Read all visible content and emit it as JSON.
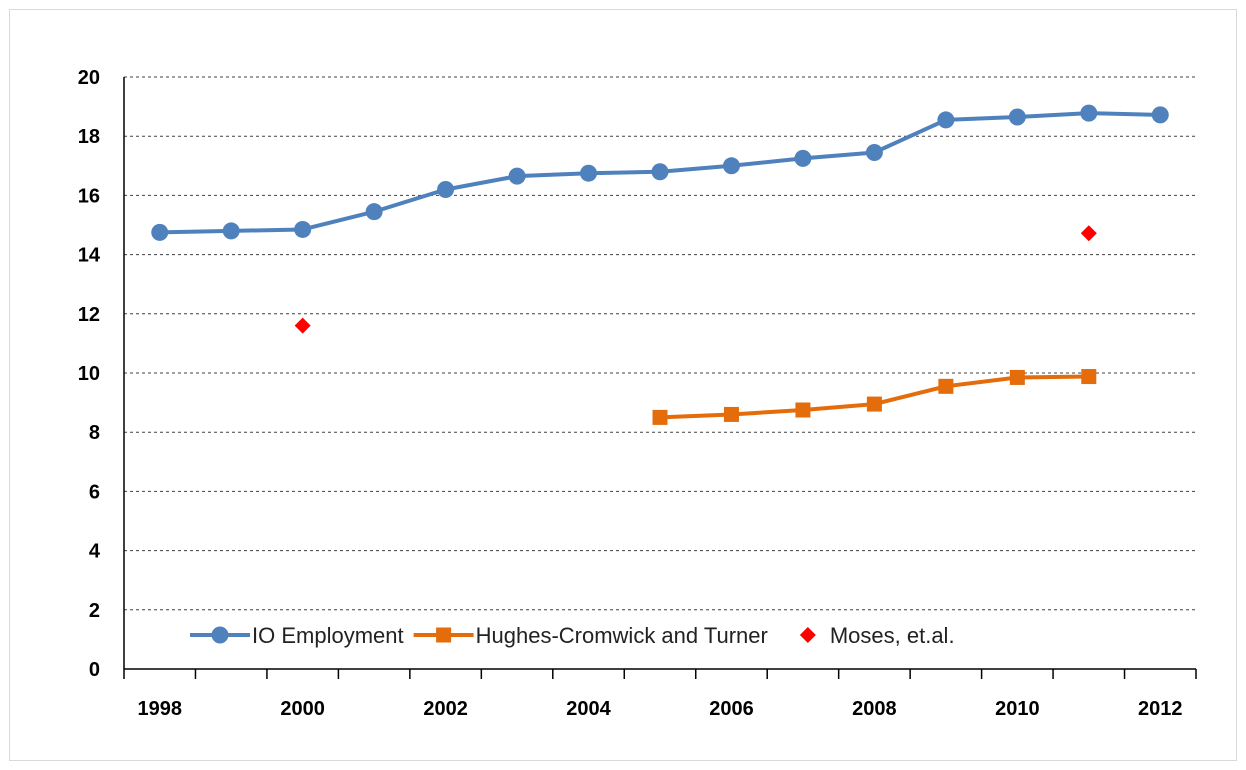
{
  "chart_data": {
    "type": "line",
    "title": "",
    "xlabel": "",
    "ylabel": "",
    "ylim": [
      0,
      20
    ],
    "yticks": [
      0,
      2,
      4,
      6,
      8,
      10,
      12,
      14,
      16,
      18,
      20
    ],
    "xlim": [
      1997.5,
      2012.5
    ],
    "xticks": [
      1998,
      2000,
      2002,
      2004,
      2006,
      2008,
      2010,
      2012
    ],
    "grid": "horizontal dashed",
    "legend_position": "bottom",
    "series": [
      {
        "name": "IO Employment",
        "color": "#4f81bd",
        "marker": "circle",
        "x": [
          1998,
          1999,
          2000,
          2001,
          2002,
          2003,
          2004,
          2005,
          2006,
          2007,
          2008,
          2009,
          2010,
          2011,
          2012
        ],
        "values": [
          14.75,
          14.8,
          14.85,
          15.45,
          16.2,
          16.65,
          16.75,
          16.8,
          17.0,
          17.25,
          17.45,
          18.55,
          18.65,
          18.78,
          18.72
        ]
      },
      {
        "name": "Hughes-Cromwick and Turner",
        "color": "#e46c0a",
        "marker": "square",
        "x": [
          2005,
          2006,
          2007,
          2008,
          2009,
          2010,
          2011
        ],
        "values": [
          8.5,
          8.6,
          8.75,
          8.95,
          9.55,
          9.85,
          9.88
        ]
      },
      {
        "name": "Moses, et.al.",
        "color": "#ff0000",
        "marker": "diamond",
        "line": false,
        "x": [
          2000,
          2011
        ],
        "values": [
          11.6,
          14.72
        ]
      }
    ]
  }
}
